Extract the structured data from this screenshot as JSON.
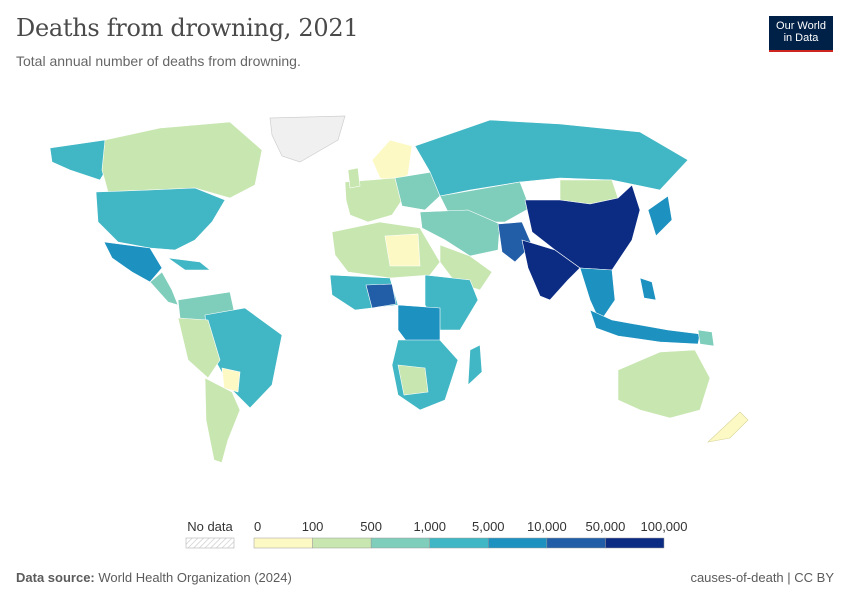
{
  "header": {
    "title": "Deaths from drowning, 2021",
    "subtitle": "Total annual number of deaths from drowning."
  },
  "logo": {
    "line1": "Our World",
    "line2": "in Data"
  },
  "legend": {
    "no_data_label": "No data",
    "no_data_color": "#e6e6e6",
    "ticks": [
      "0",
      "100",
      "500",
      "1,000",
      "5,000",
      "10,000",
      "50,000",
      "100,000"
    ],
    "colors": [
      "#fdf9c4",
      "#c8e6b0",
      "#7fcdbb",
      "#41b6c4",
      "#1d91c0",
      "#225ea8",
      "#0c2c84"
    ]
  },
  "footer": {
    "source_label": "Data source:",
    "source_text": "World Health Organization (2024)",
    "credit": "causes-of-death | CC BY"
  }
}
